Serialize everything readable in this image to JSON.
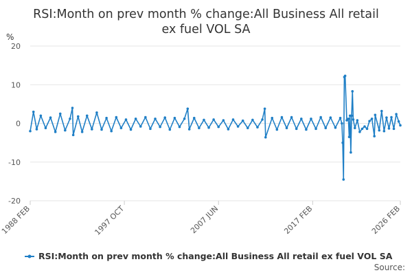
{
  "chart_data": {
    "type": "line",
    "title_lines": [
      "RSI:Month on prev month % change:All Business All retail",
      "ex fuel VOL SA"
    ],
    "ylabel": "%",
    "ylim": [
      -20,
      20
    ],
    "yticks": [
      20,
      10,
      0,
      -10,
      -20
    ],
    "xlim": [
      "1988-02",
      "2026-02"
    ],
    "xticks": [
      {
        "date": "1988-02",
        "label": "1988 FEB"
      },
      {
        "date": "1997-10",
        "label": "1997 OCT"
      },
      {
        "date": "2007-06",
        "label": "2007 JUN"
      },
      {
        "date": "2017-02",
        "label": "2017 FEB"
      },
      {
        "date": "2026-02",
        "label": "2026 FEB"
      }
    ],
    "grid": true,
    "legend_placement": "bottom",
    "series": [
      {
        "name": "RSI:Month on prev month % change:All Business All retail ex fuel VOL SA",
        "color": "#1f7fc6",
        "points": [
          [
            "1988-02",
            -2.0
          ],
          [
            "1988-06",
            3.0
          ],
          [
            "1988-10",
            -1.5
          ],
          [
            "1989-03",
            2.0
          ],
          [
            "1989-09",
            -1.2
          ],
          [
            "1990-03",
            1.5
          ],
          [
            "1990-09",
            -2.2
          ],
          [
            "1991-03",
            2.5
          ],
          [
            "1991-09",
            -1.8
          ],
          [
            "1992-03",
            1.2
          ],
          [
            "1992-06",
            4.0
          ],
          [
            "1992-07",
            -3.0
          ],
          [
            "1993-01",
            1.8
          ],
          [
            "1993-06",
            -2.2
          ],
          [
            "1993-12",
            2.0
          ],
          [
            "1994-06",
            -1.5
          ],
          [
            "1994-12",
            2.8
          ],
          [
            "1995-06",
            -1.6
          ],
          [
            "1995-12",
            1.4
          ],
          [
            "1996-06",
            -2.0
          ],
          [
            "1996-12",
            1.6
          ],
          [
            "1997-06",
            -1.2
          ],
          [
            "1997-12",
            1.0
          ],
          [
            "1998-06",
            -1.6
          ],
          [
            "1998-12",
            1.2
          ],
          [
            "1999-06",
            -0.8
          ],
          [
            "1999-12",
            1.6
          ],
          [
            "2000-06",
            -1.4
          ],
          [
            "2000-12",
            1.2
          ],
          [
            "2001-06",
            -0.9
          ],
          [
            "2001-12",
            1.5
          ],
          [
            "2002-06",
            -1.6
          ],
          [
            "2002-12",
            1.4
          ],
          [
            "2003-06",
            -0.9
          ],
          [
            "2003-12",
            1.2
          ],
          [
            "2004-04",
            3.8
          ],
          [
            "2004-06",
            -1.5
          ],
          [
            "2004-12",
            1.4
          ],
          [
            "2005-06",
            -1.2
          ],
          [
            "2005-12",
            0.9
          ],
          [
            "2006-06",
            -1.1
          ],
          [
            "2006-12",
            1.0
          ],
          [
            "2007-06",
            -0.9
          ],
          [
            "2007-12",
            0.8
          ],
          [
            "2008-06",
            -1.5
          ],
          [
            "2008-12",
            1.0
          ],
          [
            "2009-06",
            -0.8
          ],
          [
            "2009-12",
            0.7
          ],
          [
            "2010-06",
            -1.2
          ],
          [
            "2010-12",
            0.9
          ],
          [
            "2011-06",
            -1.0
          ],
          [
            "2011-12",
            1.0
          ],
          [
            "2012-03",
            3.8
          ],
          [
            "2012-04",
            -3.6
          ],
          [
            "2012-12",
            1.4
          ],
          [
            "2013-06",
            -1.6
          ],
          [
            "2013-12",
            1.6
          ],
          [
            "2014-06",
            -1.2
          ],
          [
            "2014-12",
            1.6
          ],
          [
            "2015-06",
            -1.4
          ],
          [
            "2015-12",
            1.2
          ],
          [
            "2016-06",
            -1.6
          ],
          [
            "2016-12",
            1.2
          ],
          [
            "2017-06",
            -1.4
          ],
          [
            "2017-12",
            1.6
          ],
          [
            "2018-06",
            -1.2
          ],
          [
            "2018-12",
            1.5
          ],
          [
            "2019-06",
            -1.1
          ],
          [
            "2019-12",
            1.4
          ],
          [
            "2020-02",
            0.0
          ],
          [
            "2020-03",
            -5.0
          ],
          [
            "2020-04",
            -14.5
          ],
          [
            "2020-05",
            12.0
          ],
          [
            "2020-06",
            12.3
          ],
          [
            "2020-08",
            0.8
          ],
          [
            "2020-10",
            1.2
          ],
          [
            "2020-11",
            -3.5
          ],
          [
            "2020-12",
            2.0
          ],
          [
            "2021-01",
            -7.5
          ],
          [
            "2021-02",
            2.0
          ],
          [
            "2021-03",
            8.3
          ],
          [
            "2021-04",
            1.0
          ],
          [
            "2021-06",
            -1.2
          ],
          [
            "2021-09",
            0.8
          ],
          [
            "2021-12",
            -2.2
          ],
          [
            "2022-03",
            -1.4
          ],
          [
            "2022-06",
            -0.8
          ],
          [
            "2022-09",
            -1.4
          ],
          [
            "2022-12",
            0.6
          ],
          [
            "2023-03",
            1.2
          ],
          [
            "2023-06",
            -3.3
          ],
          [
            "2023-07",
            2.2
          ],
          [
            "2023-12",
            -1.8
          ],
          [
            "2024-03",
            3.2
          ],
          [
            "2024-06",
            -2.0
          ],
          [
            "2024-09",
            1.5
          ],
          [
            "2024-12",
            -1.3
          ],
          [
            "2025-03",
            1.6
          ],
          [
            "2025-06",
            -1.4
          ],
          [
            "2025-09",
            2.4
          ],
          [
            "2025-12",
            0.5
          ],
          [
            "2026-02",
            -0.5
          ]
        ]
      }
    ],
    "source_label": "Source:"
  }
}
